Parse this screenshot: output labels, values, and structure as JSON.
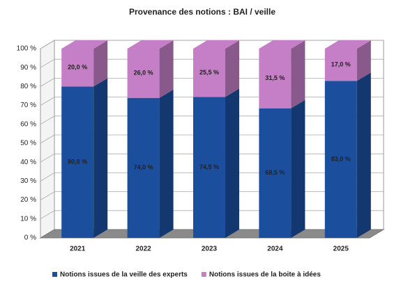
{
  "chart_data": {
    "type": "bar3d_stacked",
    "title": "Provenance des notions : BAI / veille",
    "categories": [
      "2021",
      "2022",
      "2023",
      "2024",
      "2025"
    ],
    "series": [
      {
        "name": "Notions issues de la veille des experts",
        "color": "#1b4f9e",
        "values": [
          80,
          74,
          74.5,
          68.5,
          83
        ],
        "value_labels": [
          "80,0 %",
          "74,0 %",
          "74,5 %",
          "68,5 %",
          "83,0 %"
        ]
      },
      {
        "name": "Notions issues de la boite à idées",
        "color": "#c57fc6",
        "values": [
          20,
          26,
          25.5,
          31.5,
          17
        ],
        "value_labels": [
          "20,0 %",
          "26,0 %",
          "25,5 %",
          "31,5 %",
          "17,0 %"
        ]
      }
    ],
    "ylim": [
      0,
      100
    ],
    "yticks": [
      {
        "value": 0,
        "label": "0 %"
      },
      {
        "value": 10,
        "label": "10 %"
      },
      {
        "value": 20,
        "label": "20 %"
      },
      {
        "value": 30,
        "label": "30 %"
      },
      {
        "value": 40,
        "label": "40 %"
      },
      {
        "value": 50,
        "label": "50 %"
      },
      {
        "value": 60,
        "label": "60 %"
      },
      {
        "value": 70,
        "label": "70 %"
      },
      {
        "value": 80,
        "label": "80 %"
      },
      {
        "value": 90,
        "label": "90 %"
      },
      {
        "value": 100,
        "label": "100 %"
      }
    ],
    "grid": true
  }
}
